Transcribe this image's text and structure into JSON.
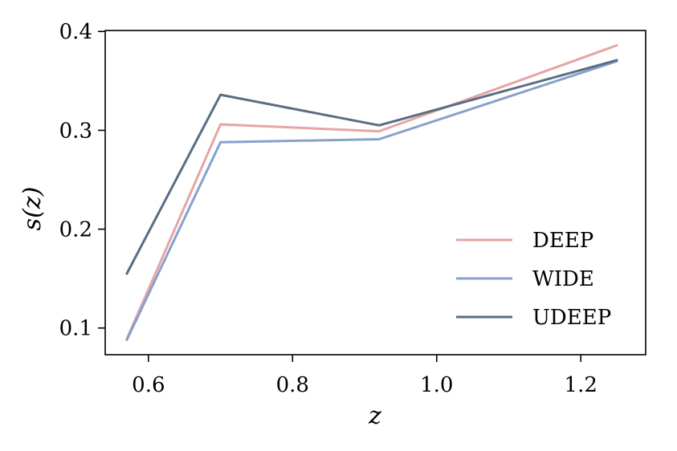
{
  "chart_data": {
    "type": "line",
    "xlabel": "z",
    "ylabel": "s(z)",
    "xlim": [
      0.54,
      1.29
    ],
    "ylim": [
      0.073,
      0.401
    ],
    "x_ticks": [
      "0.6",
      "0.8",
      "1.0",
      "1.2"
    ],
    "y_ticks": [
      "0.1",
      "0.2",
      "0.3",
      "0.4"
    ],
    "grid": false,
    "legend_position": "lower-right",
    "x": [
      0.57,
      0.7,
      0.92,
      1.25
    ],
    "series": [
      {
        "name": "DEEP",
        "color": "#e6a5a5",
        "values": [
          0.089,
          0.306,
          0.299,
          0.386
        ]
      },
      {
        "name": "WIDE",
        "color": "#87a1cc",
        "values": [
          0.088,
          0.288,
          0.291,
          0.37
        ]
      },
      {
        "name": "UDEEP",
        "color": "#5a6d83",
        "values": [
          0.155,
          0.336,
          0.305,
          0.371
        ]
      }
    ]
  }
}
